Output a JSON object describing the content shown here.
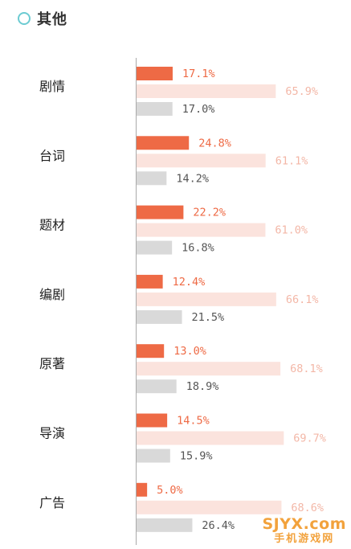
{
  "header": {
    "title": "其他",
    "icon": "circle-icon"
  },
  "colors": {
    "series1": "#ee6a45",
    "series2": "#fbe3dd",
    "series3": "#d9d9d9",
    "label1": "#ee6a45",
    "label2": "#f3b7a7",
    "label3": "#555555",
    "category": "#222222",
    "axis": "#aaaaaa"
  },
  "chart_data": {
    "type": "bar",
    "orientation": "horizontal",
    "categories": [
      "剧情",
      "台词",
      "题材",
      "编剧",
      "原著",
      "导演",
      "广告"
    ],
    "series": [
      {
        "values": [
          17.1,
          24.8,
          22.2,
          12.4,
          13.0,
          14.5,
          5.0
        ]
      },
      {
        "values": [
          65.9,
          61.1,
          61.0,
          66.1,
          68.1,
          69.7,
          68.6
        ]
      },
      {
        "values": [
          17.0,
          14.2,
          16.8,
          21.5,
          18.9,
          15.9,
          26.4
        ]
      }
    ],
    "value_labels": [
      [
        "17.1%",
        "24.8%",
        "22.2%",
        "12.4%",
        "13.0%",
        "14.5%",
        "5.0%"
      ],
      [
        "65.9%",
        "61.1%",
        "61.0%",
        "66.1%",
        "68.1%",
        "69.7%",
        "68.6%"
      ],
      [
        "17.0%",
        "14.2%",
        "16.8%",
        "21.5%",
        "18.9%",
        "15.9%",
        "26.4%"
      ]
    ],
    "xlim": [
      0,
      100
    ],
    "grid": false,
    "legend": "none"
  },
  "watermark": {
    "top": "SJYX.com",
    "bottom": "手机游戏网"
  }
}
